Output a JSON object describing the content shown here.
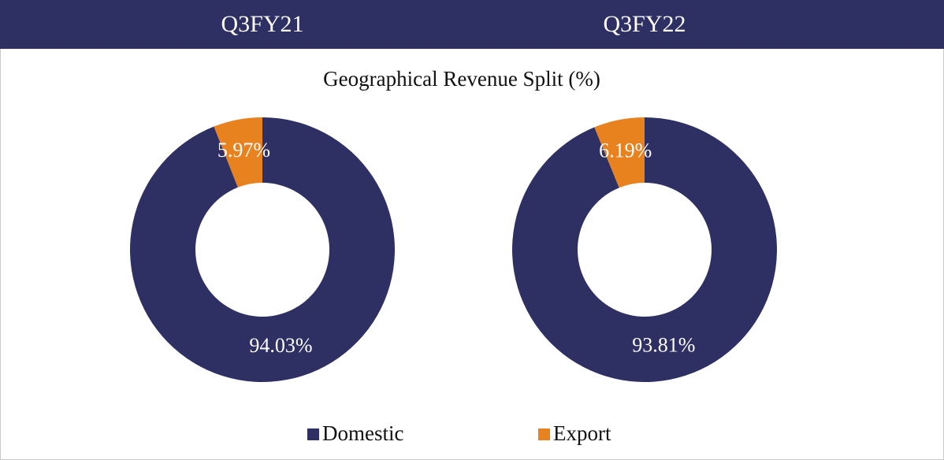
{
  "title": "Geographical Revenue Split (%)",
  "chart_data": [
    {
      "type": "pie",
      "title": "Q3FY21",
      "categories": [
        "Domestic",
        "Export"
      ],
      "values": [
        94.03,
        5.97
      ],
      "value_labels": [
        "94.03%",
        "5.97%"
      ],
      "colors": [
        "#2e2f63",
        "#e8821e"
      ]
    },
    {
      "type": "pie",
      "title": "Q3FY22",
      "categories": [
        "Domestic",
        "Export"
      ],
      "values": [
        93.81,
        6.19
      ],
      "value_labels": [
        "93.81%",
        "6.19%"
      ],
      "colors": [
        "#2e2f63",
        "#e8821e"
      ]
    }
  ]
}
